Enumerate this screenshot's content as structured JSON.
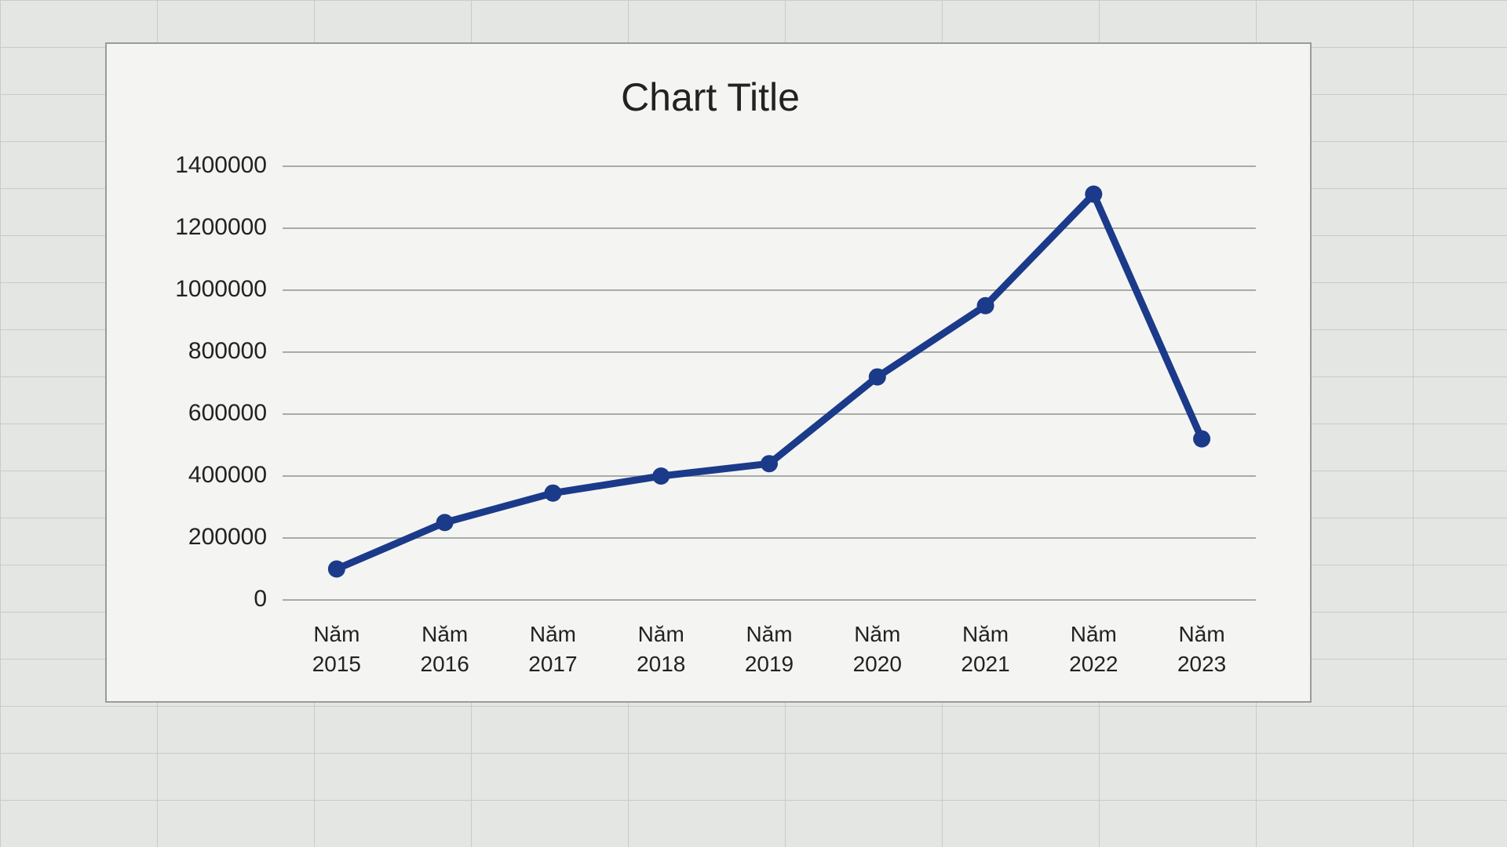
{
  "chart_data": {
    "type": "line",
    "title": "Chart Title",
    "categories": [
      "Năm 2015",
      "Năm 2016",
      "Năm 2017",
      "Năm 2018",
      "Năm 2019",
      "Năm 2020",
      "Năm 2021",
      "Năm 2022",
      "Năm 2023"
    ],
    "values": [
      100000,
      250000,
      345000,
      400000,
      440000,
      720000,
      950000,
      1310000,
      520000
    ],
    "color": "#1b3a8a",
    "ylim": [
      0,
      1400000
    ],
    "yticks": [
      0,
      200000,
      400000,
      600000,
      800000,
      1000000,
      1200000,
      1400000
    ],
    "grid": true
  }
}
